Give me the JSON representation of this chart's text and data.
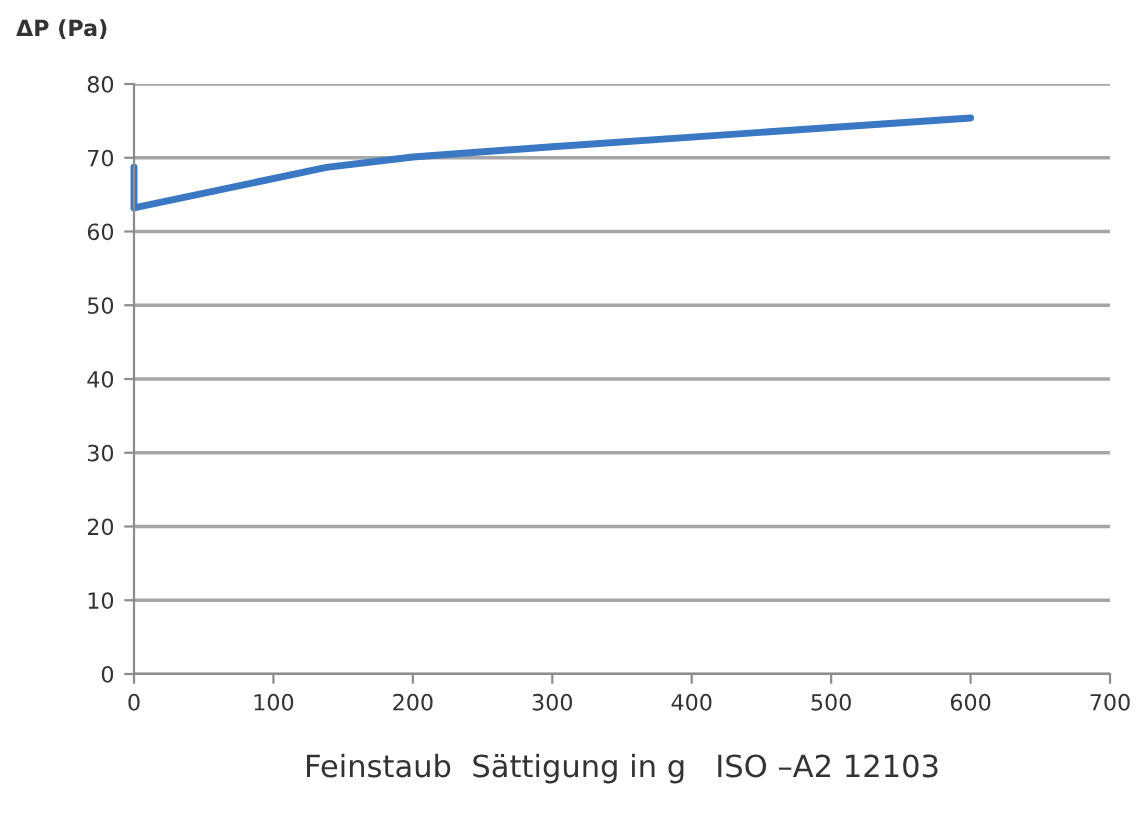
{
  "chart_data": {
    "type": "line",
    "ylabel": "ΔP (Pa)",
    "xlabel": "Feinstaub  Sättigung in g   ISO –A2 12103",
    "series": [
      {
        "color": "#3a78c3",
        "x": [
          0,
          0,
          138,
          200,
          300,
          400,
          500,
          600
        ],
        "values": [
          68.7,
          63.2,
          68.7,
          70.1,
          71.5,
          72.8,
          74.1,
          75.4
        ]
      }
    ],
    "xlim": [
      0,
      700
    ],
    "xticks": [
      0,
      100,
      200,
      300,
      400,
      500,
      600,
      700
    ],
    "ylim": [
      0,
      80
    ],
    "yticks": [
      0,
      10,
      20,
      30,
      40,
      50,
      60,
      70,
      80
    ],
    "grid": "y",
    "marker": "none",
    "line_style": "solid"
  }
}
